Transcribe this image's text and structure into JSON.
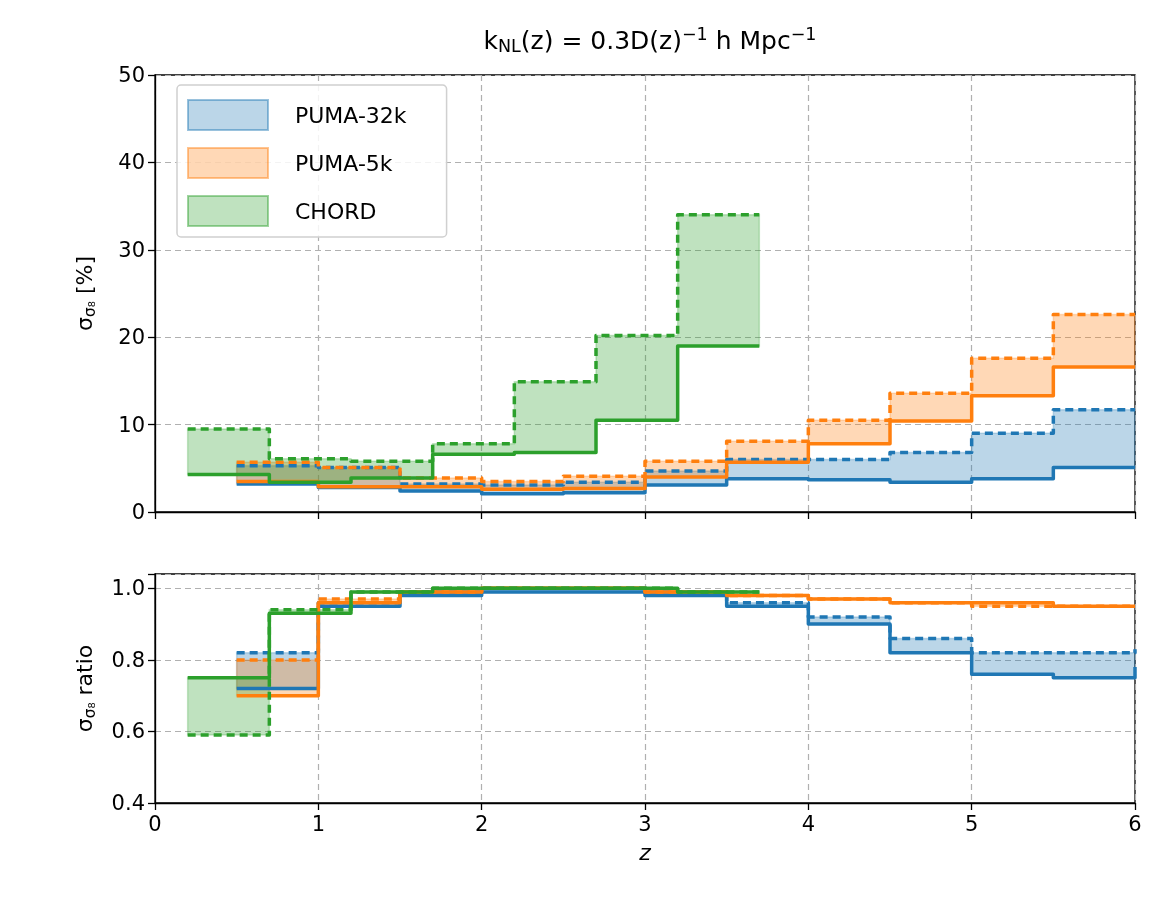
{
  "chart_data": [
    {
      "type": "step",
      "title": "k$_{NL}$(z) = 0.3D(z)$^{−1}$ h Mpc$^{−1}$",
      "ylabel": "σ$_{σ₈}$ [%]",
      "xlim": [
        0,
        6
      ],
      "xticks": [
        0,
        1,
        2,
        3,
        4,
        5,
        6
      ],
      "ylim": [
        0,
        50
      ],
      "yticks": [
        0,
        10,
        20,
        30,
        40,
        50
      ],
      "grid": true,
      "legend": "top left",
      "tick_labels": "y",
      "series": [
        {
          "name": "PUMA-32k",
          "color": "#1f77b4",
          "x": [
            0.5,
            1,
            1.5,
            2,
            2.5,
            3,
            3.5,
            4,
            4.5,
            5,
            5.5,
            6
          ],
          "values": [
            3.2,
            2.8,
            2.4,
            2.1,
            2.2,
            3.1,
            3.8,
            3.7,
            3.4,
            3.8,
            5.1,
            5.1
          ],
          "lower": [
            3.2,
            2.8,
            2.4,
            2.1,
            2.2,
            3.1,
            3.8,
            3.7,
            3.4,
            3.8,
            5.1,
            5.1
          ],
          "upper": [
            5.3,
            5.1,
            3.2,
            3.1,
            3.4,
            4.7,
            6.0,
            6.0,
            6.8,
            9.0,
            11.7,
            11.7
          ]
        },
        {
          "color": "#1f77b4",
          "line_style": "dashed",
          "x": [
            0.5,
            1,
            1.5,
            2,
            2.5,
            3,
            3.5,
            4,
            4.5,
            5,
            5.5,
            6
          ],
          "values": [
            5.3,
            5.1,
            3.2,
            3.1,
            3.4,
            4.7,
            6.0,
            6.0,
            6.8,
            9.0,
            11.7,
            11.7
          ]
        },
        {
          "name": "PUMA-5k",
          "color": "#ff7f0e",
          "x": [
            0.5,
            1,
            1.5,
            2,
            2.5,
            3,
            3.5,
            4,
            4.5,
            5,
            5.5,
            6
          ],
          "values": [
            3.5,
            2.9,
            2.9,
            2.6,
            2.7,
            4.0,
            5.7,
            7.8,
            10.4,
            13.3,
            16.6,
            16.6
          ],
          "lower": [
            3.5,
            2.9,
            2.9,
            2.6,
            2.7,
            4.0,
            5.7,
            7.8,
            10.4,
            13.3,
            16.6,
            16.6
          ],
          "upper": [
            5.7,
            5.1,
            3.9,
            3.5,
            4.1,
            5.8,
            8.1,
            10.5,
            13.6,
            17.6,
            22.6,
            22.6
          ]
        },
        {
          "color": "#ff7f0e",
          "line_style": "dashed",
          "x": [
            0.5,
            1,
            1.5,
            2,
            2.5,
            3,
            3.5,
            4,
            4.5,
            5,
            5.5,
            6
          ],
          "values": [
            5.7,
            5.1,
            3.9,
            3.5,
            4.1,
            5.8,
            8.1,
            10.5,
            13.6,
            17.6,
            22.6,
            22.6
          ]
        },
        {
          "name": "CHORD",
          "color": "#2ca02c",
          "x": [
            0.2,
            0.7,
            1.2,
            1.7,
            2.2,
            2.7,
            3.2,
            3.7
          ],
          "values": [
            4.3,
            3.4,
            3.9,
            6.6,
            6.8,
            10.5,
            19.0,
            19.0
          ],
          "lower": [
            4.3,
            3.4,
            3.9,
            6.6,
            6.8,
            10.5,
            19.0,
            19.0
          ],
          "upper": [
            9.5,
            6.1,
            5.8,
            7.8,
            14.9,
            20.2,
            34.0,
            34.0
          ]
        },
        {
          "color": "#2ca02c",
          "line_style": "dashed",
          "x": [
            0.2,
            0.7,
            1.2,
            1.7,
            2.2,
            2.7,
            3.2,
            3.7
          ],
          "values": [
            9.5,
            6.1,
            5.8,
            7.8,
            14.9,
            20.2,
            34.0,
            34.0
          ]
        }
      ]
    },
    {
      "type": "step",
      "xlabel": "z",
      "ylabel": "σ$_{σ₈}$ ratio",
      "xlim": [
        0,
        6
      ],
      "xticks": [
        0,
        1,
        2,
        3,
        4,
        5,
        6
      ],
      "ylim": [
        0.4,
        1.04
      ],
      "yticks": [
        0.4,
        0.6,
        0.8,
        {
          "value": 1,
          "label": "1.0"
        }
      ],
      "grid": true,
      "series": [
        {
          "color": "#1f77b4",
          "x": [
            0.5,
            1,
            1.5,
            2,
            2.5,
            3,
            3.5,
            4,
            4.5,
            5,
            5.5,
            6
          ],
          "values": [
            0.72,
            0.95,
            0.98,
            0.99,
            0.99,
            0.98,
            0.95,
            0.9,
            0.82,
            0.76,
            0.75,
            0.78
          ],
          "lower": [
            0.72,
            0.95,
            0.98,
            0.99,
            0.99,
            0.98,
            0.95,
            0.9,
            0.82,
            0.76,
            0.75,
            0.78
          ],
          "upper": [
            0.82,
            0.96,
            0.99,
            1.0,
            1.0,
            0.99,
            0.96,
            0.92,
            0.86,
            0.82,
            0.82,
            0.83
          ]
        },
        {
          "color": "#1f77b4",
          "line_style": "dashed",
          "x": [
            0.5,
            1,
            1.5,
            2,
            2.5,
            3,
            3.5,
            4,
            4.5,
            5,
            5.5,
            6
          ],
          "values": [
            0.82,
            0.96,
            0.99,
            1.0,
            1.0,
            0.99,
            0.96,
            0.92,
            0.86,
            0.82,
            0.82,
            0.83
          ]
        },
        {
          "color": "#ff7f0e",
          "x": [
            0.5,
            1,
            1.5,
            2,
            2.5,
            3,
            3.5,
            4,
            4.5,
            5,
            5.5,
            6
          ],
          "values": [
            0.7,
            0.96,
            0.99,
            1.0,
            1.0,
            0.99,
            0.98,
            0.97,
            0.96,
            0.96,
            0.95,
            0.95
          ],
          "lower": [
            0.7,
            0.96,
            0.99,
            1.0,
            1.0,
            0.99,
            0.98,
            0.97,
            0.96,
            0.96,
            0.95,
            0.95
          ],
          "upper": [
            0.8,
            0.97,
            0.99,
            1.0,
            1.0,
            0.99,
            0.98,
            0.97,
            0.96,
            0.95,
            0.95,
            0.95
          ]
        },
        {
          "color": "#ff7f0e",
          "line_style": "dashed",
          "x": [
            0.5,
            1,
            1.5,
            2,
            2.5,
            3,
            3.5,
            4,
            4.5,
            5,
            5.5,
            6
          ],
          "values": [
            0.8,
            0.97,
            0.99,
            1.0,
            1.0,
            0.99,
            0.98,
            0.97,
            0.96,
            0.95,
            0.95,
            0.95
          ]
        },
        {
          "color": "#2ca02c",
          "x": [
            0.2,
            0.7,
            1.2,
            1.7,
            2.2,
            2.7,
            3.2,
            3.7
          ],
          "values": [
            0.75,
            0.93,
            0.99,
            1.0,
            1.0,
            1.0,
            0.99,
            0.99
          ],
          "lower": [
            0.75,
            0.93,
            0.99,
            1.0,
            1.0,
            1.0,
            0.99,
            0.99
          ],
          "upper": [
            0.59,
            0.94,
            0.99,
            1.0,
            1.0,
            1.0,
            0.99,
            0.99
          ]
        },
        {
          "color": "#2ca02c",
          "line_style": "dashed",
          "x": [
            0.2,
            0.7,
            1.2,
            1.7,
            2.2,
            2.7,
            3.2,
            3.7
          ],
          "values": [
            0.59,
            0.94,
            0.99,
            1.0,
            1.0,
            1.0,
            0.99,
            0.99
          ]
        }
      ]
    }
  ]
}
